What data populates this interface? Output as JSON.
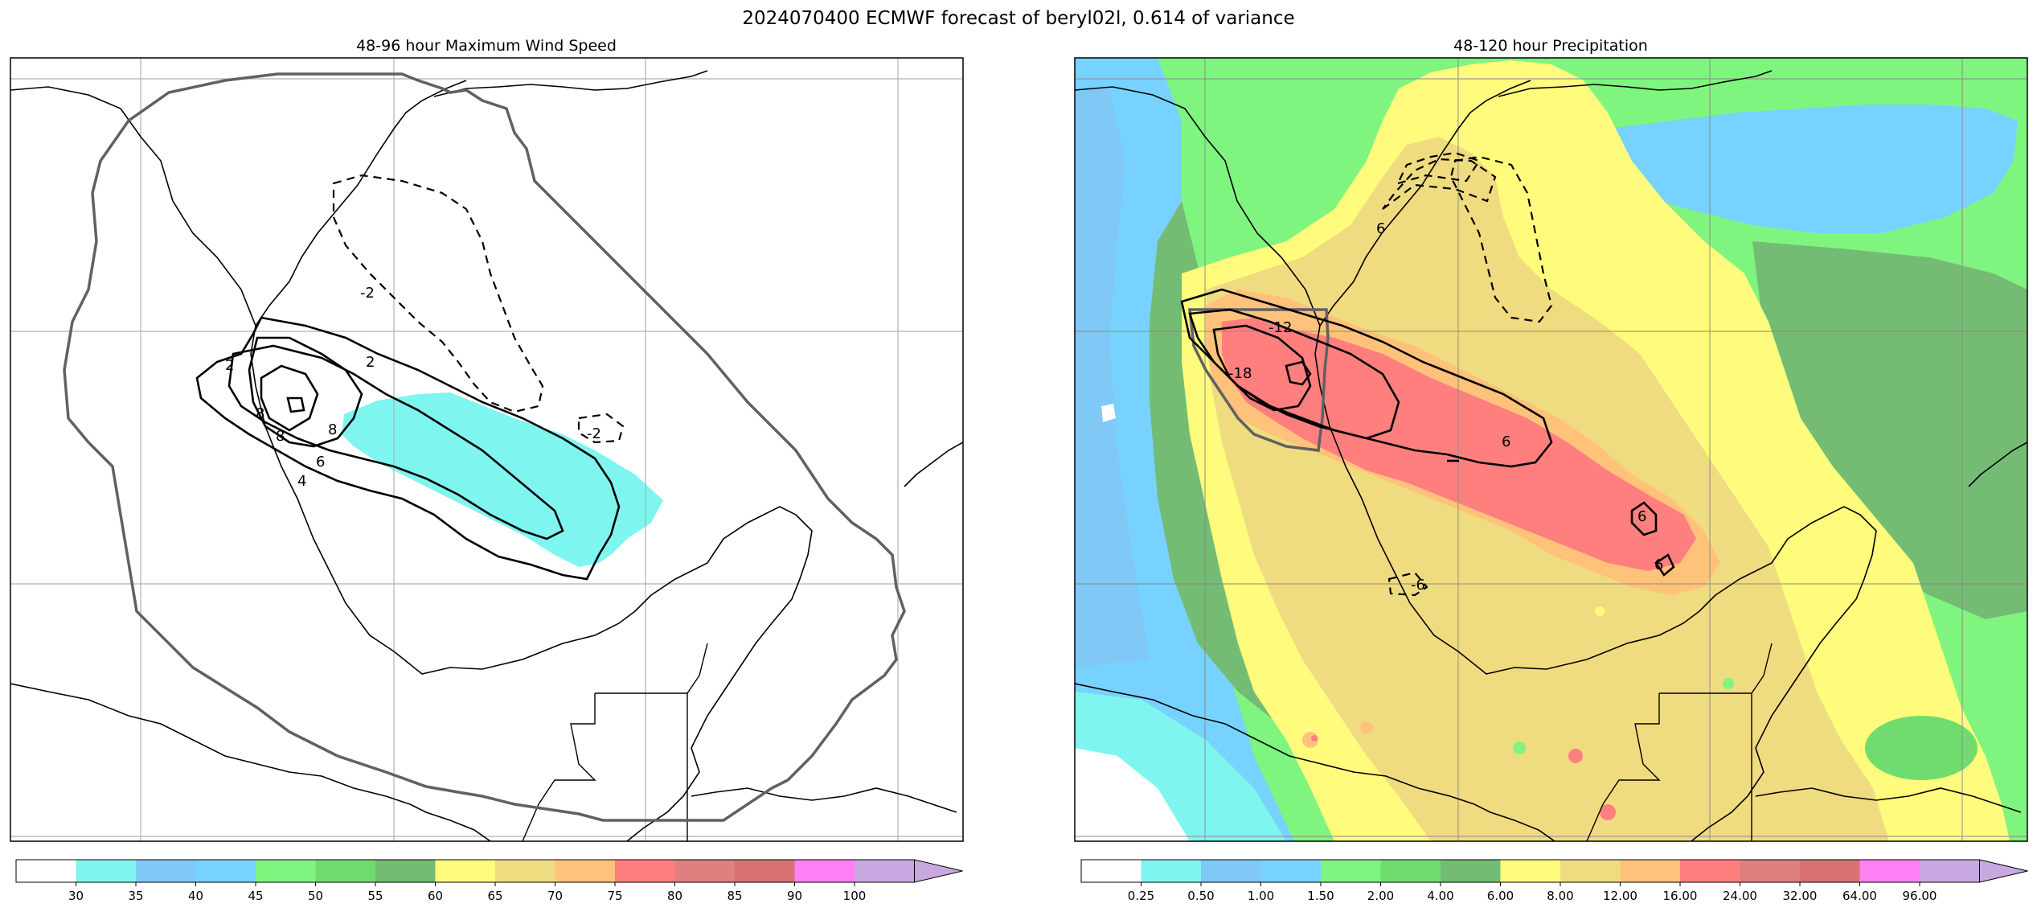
{
  "title": "2024070400 ECMWF forecast of beryl02l, 0.614 of variance",
  "panels": [
    {
      "title": "48-96 hour Maximum Wind Speed",
      "colorbar": {
        "labels": [
          "30",
          "35",
          "40",
          "45",
          "50",
          "55",
          "60",
          "65",
          "70",
          "75",
          "80",
          "85",
          "90",
          "100"
        ],
        "colors": [
          "#ffffff",
          "#7ff5f0",
          "#80c8f5",
          "#78d2ff",
          "#7ff57f",
          "#70dc70",
          "#74bc74",
          "#fffb7c",
          "#f0dc80",
          "#ffc27a",
          "#ff7f7f",
          "#e07f7f",
          "#d87272",
          "#ff7ff5",
          "#c8a8e0"
        ]
      },
      "contour_labels": [
        "2",
        "-2",
        "-2",
        "2",
        "4",
        "6",
        "8",
        "8",
        "8"
      ]
    },
    {
      "title": "48-120 hour Precipitation",
      "colorbar": {
        "labels": [
          "0.25",
          "0.50",
          "1.00",
          "1.50",
          "2.00",
          "4.00",
          "6.00",
          "8.00",
          "12.00",
          "16.00",
          "24.00",
          "32.00",
          "64.00",
          "96.00"
        ],
        "colors": [
          "#ffffff",
          "#7ff5f0",
          "#80c8f5",
          "#78d2ff",
          "#7ff57f",
          "#70dc70",
          "#74bc74",
          "#fffb7c",
          "#f0dc80",
          "#ffc27a",
          "#ff7f7f",
          "#e07f7f",
          "#d87272",
          "#ff7ff5",
          "#c8a8e0"
        ]
      },
      "contour_labels": [
        "6",
        "-12",
        "-18",
        "6",
        "6",
        "6",
        "-6"
      ]
    }
  ],
  "chart_data": [
    {
      "type": "heatmap",
      "title": "48-96 hour Maximum Wind Speed",
      "colorbar_levels": [
        30,
        35,
        40,
        45,
        50,
        55,
        60,
        65,
        70,
        75,
        80,
        85,
        90,
        100
      ],
      "colorbar_extend": "max",
      "shaded_field": "maximum wind speed, values mostly below 30; a band of 30-35 shading along the storm track",
      "overlay_contour_levels": [
        -2,
        2,
        4,
        6,
        8
      ],
      "grid": true,
      "map": true
    },
    {
      "type": "heatmap",
      "title": "48-120 hour Precipitation",
      "colorbar_levels": [
        0.25,
        0.5,
        1.0,
        1.5,
        2.0,
        4.0,
        6.0,
        8.0,
        12.0,
        16.0,
        24.0,
        32.0,
        64.0,
        96.0
      ],
      "colorbar_extend": "max",
      "shaded_field": "accumulated precipitation, maximum 16-24 along the storm track",
      "overlay_contour_levels": [
        -18,
        -12,
        -6,
        6
      ],
      "grid": true,
      "map": true
    }
  ]
}
